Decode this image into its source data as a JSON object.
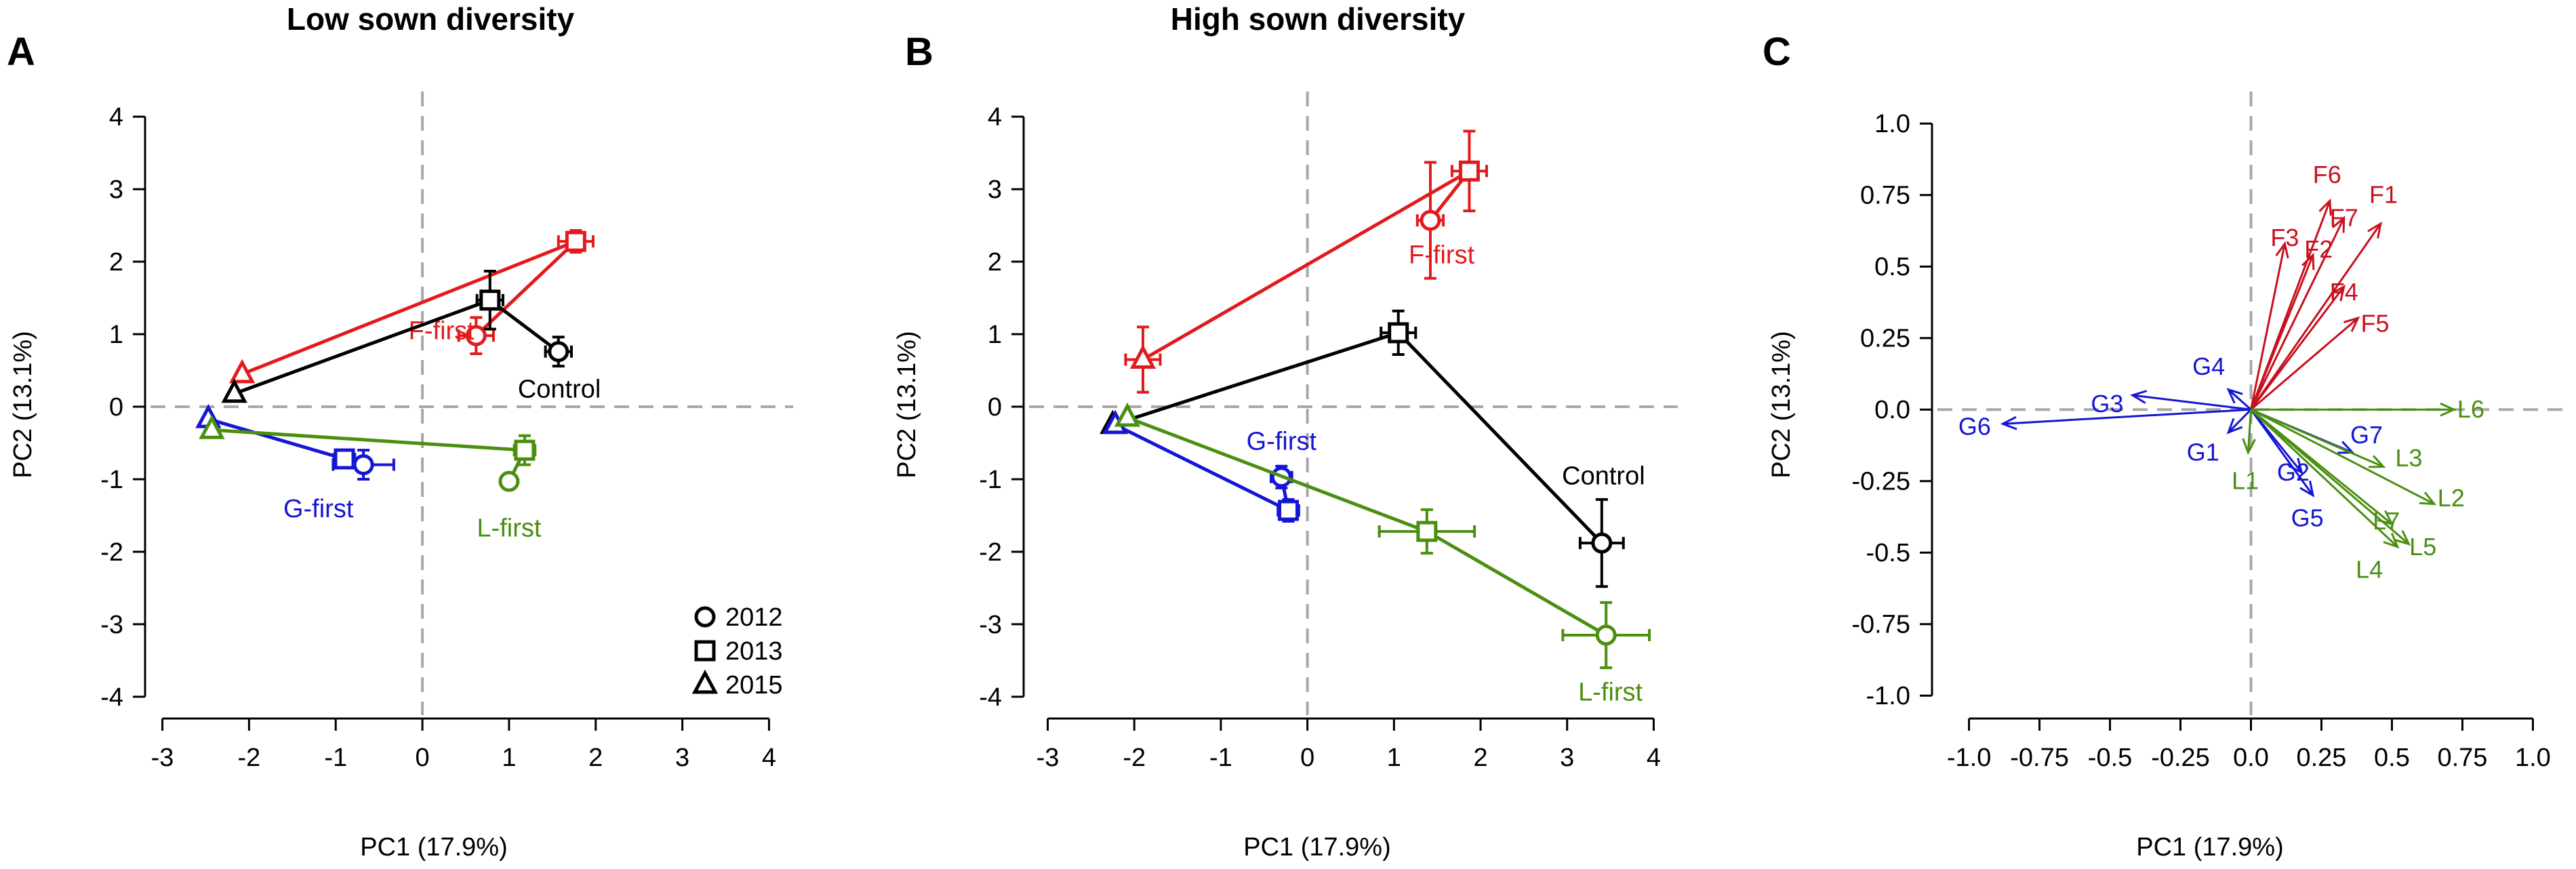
{
  "chart_data": [
    {
      "panel": "A",
      "type": "scatter",
      "title": "Low sown diversity",
      "xlabel": "PC1 (17.9%)",
      "ylabel": "PC2 (13.1%)",
      "xlim": [
        -3.2,
        4.2
      ],
      "ylim": [
        -4.3,
        4.3
      ],
      "xticks": [
        -3,
        -2,
        -1,
        0,
        1,
        2,
        3,
        4
      ],
      "yticks": [
        -4,
        -3,
        -2,
        -1,
        0,
        1,
        2,
        3,
        4
      ],
      "colors": {
        "F-first": "#e31a1c",
        "Control": "#000000",
        "G-first": "#1515d4",
        "L-first": "#4a8f10"
      },
      "series": [
        {
          "name": "F-first",
          "label_text": "F-first",
          "label_pos": [
            0.22,
            1.05
          ],
          "points": [
            {
              "year": "2012",
              "x": 0.62,
              "y": 0.98,
              "xerr": 0.2,
              "yerr": 0.25
            },
            {
              "year": "2013",
              "x": 1.77,
              "y": 2.28,
              "xerr": 0.2,
              "yerr": 0.15
            },
            {
              "year": "2015",
              "x": -2.08,
              "y": 0.45,
              "xerr": 0.0,
              "yerr": 0.0
            }
          ]
        },
        {
          "name": "Control",
          "label_text": "Control",
          "label_pos": [
            1.58,
            0.25
          ],
          "points": [
            {
              "year": "2012",
              "x": 1.57,
              "y": 0.76,
              "xerr": 0.15,
              "yerr": 0.2
            },
            {
              "year": "2013",
              "x": 0.78,
              "y": 1.47,
              "xerr": 0.15,
              "yerr": 0.4
            },
            {
              "year": "2015",
              "x": -2.17,
              "y": 0.18,
              "xerr": 0.0,
              "yerr": 0.0
            }
          ]
        },
        {
          "name": "G-first",
          "label_text": "G-first",
          "label_pos": [
            -1.2,
            -1.4
          ],
          "points": [
            {
              "year": "2012",
              "x": -0.68,
              "y": -0.8,
              "xerr": 0.35,
              "yerr": 0.2
            },
            {
              "year": "2013",
              "x": -0.9,
              "y": -0.72,
              "xerr": 0.12,
              "yerr": 0.0
            },
            {
              "year": "2015",
              "x": -2.47,
              "y": -0.17,
              "xerr": 0.0,
              "yerr": 0.0
            }
          ]
        },
        {
          "name": "L-first",
          "label_text": "L-first",
          "label_pos": [
            1.0,
            -1.67
          ],
          "points": [
            {
              "year": "2012",
              "x": 1.0,
              "y": -1.03,
              "xerr": 0.08,
              "yerr": 0.05
            },
            {
              "year": "2013",
              "x": 1.18,
              "y": -0.6,
              "xerr": 0.12,
              "yerr": 0.2
            },
            {
              "year": "2015",
              "x": -2.43,
              "y": -0.32,
              "xerr": 0.0,
              "yerr": 0.0
            }
          ]
        }
      ],
      "legend": [
        {
          "year": "2012",
          "shape": "circle",
          "label": "2012"
        },
        {
          "year": "2013",
          "shape": "square",
          "label": "2013"
        },
        {
          "year": "2015",
          "shape": "triangle",
          "label": "2015"
        }
      ]
    },
    {
      "panel": "B",
      "type": "scatter",
      "title": "High sown diversity",
      "xlabel": "PC1 (17.9%)",
      "ylabel": "PC2 (13.1%)",
      "xlim": [
        -3.2,
        4.2
      ],
      "ylim": [
        -4.3,
        4.3
      ],
      "xticks": [
        -3,
        -2,
        -1,
        0,
        1,
        2,
        3,
        4
      ],
      "yticks": [
        -4,
        -3,
        -2,
        -1,
        0,
        1,
        2,
        3,
        4
      ],
      "colors": {
        "F-first": "#e31a1c",
        "Control": "#000000",
        "G-first": "#1515d4",
        "L-first": "#4a8f10"
      },
      "series": [
        {
          "name": "F-first",
          "label_text": "F-first",
          "label_pos": [
            1.55,
            2.1
          ],
          "points": [
            {
              "year": "2012",
              "x": 1.42,
              "y": 2.57,
              "xerr": 0.15,
              "yerr": 0.8
            },
            {
              "year": "2013",
              "x": 1.87,
              "y": 3.25,
              "xerr": 0.2,
              "yerr": 0.55
            },
            {
              "year": "2015",
              "x": -1.9,
              "y": 0.65,
              "xerr": 0.2,
              "yerr": 0.45
            }
          ]
        },
        {
          "name": "Control",
          "label_text": "Control",
          "label_pos": [
            3.42,
            -0.95
          ],
          "points": [
            {
              "year": "2012",
              "x": 3.4,
              "y": -1.88,
              "xerr": 0.25,
              "yerr": 0.6
            },
            {
              "year": "2013",
              "x": 1.05,
              "y": 1.02,
              "xerr": 0.2,
              "yerr": 0.3
            },
            {
              "year": "2015",
              "x": -2.25,
              "y": -0.25,
              "xerr": 0.0,
              "yerr": 0.0
            }
          ]
        },
        {
          "name": "G-first",
          "label_text": "G-first",
          "label_pos": [
            -0.3,
            -0.47
          ],
          "points": [
            {
              "year": "2012",
              "x": -0.3,
              "y": -0.97,
              "xerr": 0.12,
              "yerr": 0.15
            },
            {
              "year": "2013",
              "x": -0.22,
              "y": -1.43,
              "xerr": 0.12,
              "yerr": 0.15
            },
            {
              "year": "2015",
              "x": -2.22,
              "y": -0.25,
              "xerr": 0.0,
              "yerr": 0.0
            }
          ]
        },
        {
          "name": "L-first",
          "label_text": "L-first",
          "label_pos": [
            3.5,
            -3.93
          ],
          "points": [
            {
              "year": "2012",
              "x": 3.45,
              "y": -3.15,
              "xerr": 0.5,
              "yerr": 0.45
            },
            {
              "year": "2013",
              "x": 1.38,
              "y": -1.72,
              "xerr": 0.55,
              "yerr": 0.3
            },
            {
              "year": "2015",
              "x": -2.08,
              "y": -0.15,
              "xerr": 0.0,
              "yerr": 0.0
            }
          ]
        }
      ]
    },
    {
      "panel": "C",
      "type": "biplot-vectors",
      "xlabel": "PC1 (17.9%)",
      "ylabel": "PC2 (13.1%)",
      "xlim": [
        -1.1,
        1.1
      ],
      "ylim": [
        -1.08,
        1.1
      ],
      "xticks": [
        -1.0,
        -0.75,
        -0.5,
        -0.25,
        0.0,
        0.25,
        0.5,
        0.75,
        1.0
      ],
      "xtick_labels": [
        "-1.0",
        "-0.75",
        "-0.5",
        "-0.25",
        "0.0",
        "0.25",
        "0.5",
        "0.75",
        "1.0"
      ],
      "yticks": [
        -1.0,
        -0.75,
        -0.5,
        -0.25,
        0.0,
        0.25,
        0.5,
        0.75,
        1.0
      ],
      "ytick_labels": [
        "-1.0",
        "-0.75",
        "-0.5",
        "-0.25",
        "0.0",
        "0.25",
        "0.5",
        "0.75",
        "1.0"
      ],
      "colors": {
        "F": "#c8101e",
        "G": "#1515d4",
        "L": "#4a8f10"
      },
      "vectors": [
        {
          "name": "F1",
          "group": "F",
          "x": 0.46,
          "y": 0.65,
          "label_pos": [
            0.47,
            0.75
          ]
        },
        {
          "name": "F6",
          "group": "F",
          "x": 0.28,
          "y": 0.73,
          "label_pos": [
            0.27,
            0.82
          ]
        },
        {
          "name": "F7",
          "group": "F",
          "x": 0.33,
          "y": 0.67,
          "label_pos": [
            0.33,
            0.67
          ]
        },
        {
          "name": "F3",
          "group": "F",
          "x": 0.12,
          "y": 0.58,
          "label_pos": [
            0.12,
            0.6
          ]
        },
        {
          "name": "F2",
          "group": "F",
          "x": 0.22,
          "y": 0.54,
          "label_pos": [
            0.24,
            0.56
          ]
        },
        {
          "name": "F4",
          "group": "F",
          "x": 0.33,
          "y": 0.43,
          "label_pos": [
            0.33,
            0.41
          ]
        },
        {
          "name": "F5",
          "group": "F",
          "x": 0.38,
          "y": 0.32,
          "label_pos": [
            0.44,
            0.3
          ]
        },
        {
          "name": "G3",
          "group": "G",
          "x": -0.42,
          "y": 0.05,
          "label_pos": [
            -0.51,
            0.02
          ]
        },
        {
          "name": "G4",
          "group": "G",
          "x": -0.08,
          "y": 0.07,
          "label_pos": [
            -0.15,
            0.15
          ]
        },
        {
          "name": "G6",
          "group": "G",
          "x": -0.88,
          "y": -0.05,
          "label_pos": [
            -0.98,
            -0.06
          ]
        },
        {
          "name": "G1",
          "group": "G",
          "x": -0.08,
          "y": -0.08,
          "label_pos": [
            -0.17,
            -0.15
          ]
        },
        {
          "name": "G2",
          "group": "G",
          "x": 0.18,
          "y": -0.22,
          "label_pos": [
            0.15,
            -0.22
          ]
        },
        {
          "name": "G5",
          "group": "G",
          "x": 0.22,
          "y": -0.3,
          "label_pos": [
            0.2,
            -0.38
          ]
        },
        {
          "name": "G7",
          "group": "G",
          "x": 0.36,
          "y": -0.15,
          "label_pos": [
            0.41,
            -0.09
          ]
        },
        {
          "name": "L6",
          "group": "L",
          "x": 0.72,
          "y": 0.0,
          "label_pos": [
            0.78,
            0.0
          ]
        },
        {
          "name": "L1",
          "group": "L",
          "x": -0.01,
          "y": -0.15,
          "label_pos": [
            -0.02,
            -0.25
          ]
        },
        {
          "name": "L3",
          "group": "L",
          "x": 0.47,
          "y": -0.2,
          "label_pos": [
            0.56,
            -0.17
          ]
        },
        {
          "name": "L2",
          "group": "L",
          "x": 0.65,
          "y": -0.33,
          "label_pos": [
            0.71,
            -0.31
          ]
        },
        {
          "name": "L7",
          "group": "L",
          "x": 0.5,
          "y": -0.4,
          "label_pos": [
            0.48,
            -0.39
          ]
        },
        {
          "name": "L5",
          "group": "L",
          "x": 0.56,
          "y": -0.47,
          "label_pos": [
            0.61,
            -0.48
          ]
        },
        {
          "name": "L4",
          "group": "L",
          "x": 0.52,
          "y": -0.48,
          "label_pos": [
            0.42,
            -0.56
          ]
        }
      ]
    }
  ]
}
